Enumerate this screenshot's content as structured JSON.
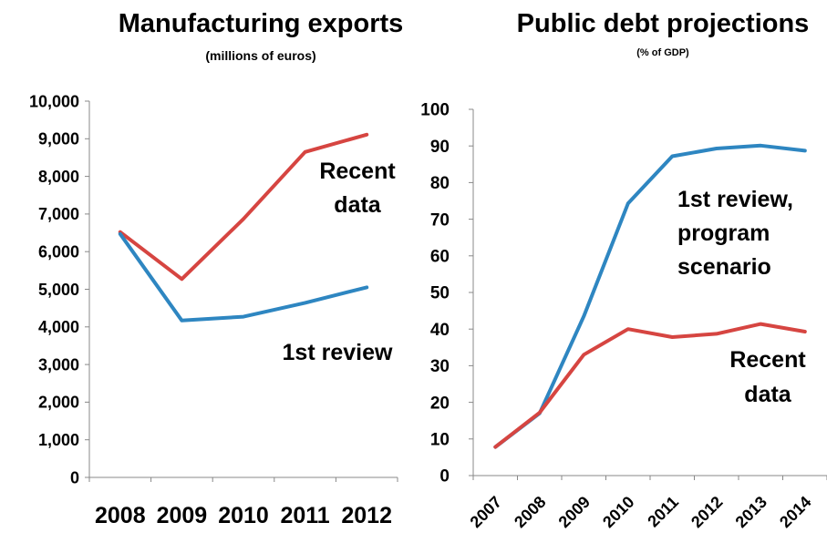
{
  "colors": {
    "blue": "#2e86c1",
    "red": "#d64541",
    "axis": "#888888"
  },
  "chart_data": [
    {
      "type": "line",
      "title": "Manufacturing exports",
      "subtitle": "(millions of euros)",
      "categories": [
        "2008",
        "2009",
        "2010",
        "2011",
        "2012"
      ],
      "ylim": [
        0,
        10000
      ],
      "yticks": [
        "0",
        "1,000",
        "2,000",
        "3,000",
        "4,000",
        "5,000",
        "6,000",
        "7,000",
        "8,000",
        "9,000",
        "10,000"
      ],
      "grid": false,
      "series": [
        {
          "name": "Recent data",
          "color": "red",
          "values": [
            6520,
            5270,
            6870,
            8650,
            9110
          ]
        },
        {
          "name": "1st review",
          "color": "blue",
          "values": [
            6470,
            4170,
            4270,
            4640,
            5050
          ]
        }
      ],
      "annotations": [
        {
          "series": "Recent data",
          "lines": [
            "Recent",
            "data"
          ]
        },
        {
          "series": "1st review",
          "lines": [
            "1st review"
          ]
        }
      ]
    },
    {
      "type": "line",
      "title": "Public debt projections",
      "subtitle": "(% of GDP)",
      "categories": [
        "2007",
        "2008",
        "2009",
        "2010",
        "2011",
        "2012",
        "2013",
        "2014"
      ],
      "ylim": [
        0,
        100
      ],
      "yticks": [
        "0",
        "10",
        "20",
        "30",
        "40",
        "50",
        "60",
        "70",
        "80",
        "90",
        "100"
      ],
      "grid": false,
      "series": [
        {
          "name": "1st review, program scenario",
          "color": "blue",
          "values": [
            7.8,
            17.0,
            43.5,
            74.3,
            87.2,
            89.3,
            90.1,
            88.7
          ]
        },
        {
          "name": "Recent data",
          "color": "red",
          "values": [
            7.8,
            17.2,
            33.0,
            40.0,
            37.8,
            38.7,
            41.4,
            39.3
          ]
        }
      ],
      "annotations": [
        {
          "series": "1st review, program scenario",
          "lines": [
            "1st review,",
            "program",
            "scenario"
          ]
        },
        {
          "series": "Recent data",
          "lines": [
            "Recent",
            "data"
          ]
        }
      ]
    }
  ]
}
